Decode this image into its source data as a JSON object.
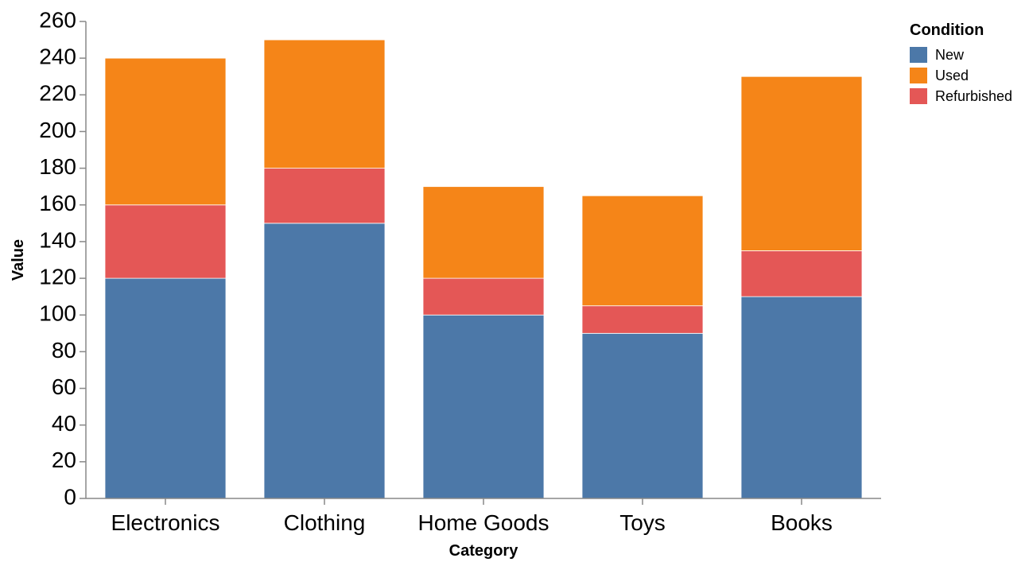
{
  "chart_data": {
    "type": "bar",
    "stacked": true,
    "title": "",
    "xlabel": "Category",
    "ylabel": "Value",
    "categories": [
      "Electronics",
      "Clothing",
      "Home Goods",
      "Toys",
      "Books"
    ],
    "ylim": [
      0,
      260
    ],
    "yticks": [
      0,
      20,
      40,
      60,
      80,
      100,
      120,
      140,
      160,
      180,
      200,
      220,
      240,
      260
    ],
    "grid": false,
    "legend": {
      "title": "Condition",
      "placement": "top-right",
      "entries": [
        "New",
        "Used",
        "Refurbished"
      ]
    },
    "stack_order": [
      "New",
      "Refurbished",
      "Used"
    ],
    "series": [
      {
        "name": "New",
        "color": "#4c78a8",
        "values": [
          120,
          150,
          100,
          90,
          110
        ]
      },
      {
        "name": "Used",
        "color": "#f58518",
        "values": [
          80,
          70,
          50,
          60,
          95
        ]
      },
      {
        "name": "Refurbished",
        "color": "#e45756",
        "values": [
          40,
          30,
          20,
          15,
          25
        ]
      }
    ]
  }
}
